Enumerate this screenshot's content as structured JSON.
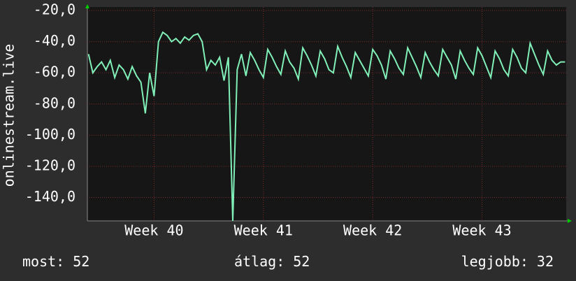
{
  "chart_data": {
    "type": "line",
    "ylabel": "onlinestream.live",
    "x": [
      39.4,
      39.44,
      39.48,
      39.52,
      39.56,
      39.6,
      39.64,
      39.68,
      39.72,
      39.76,
      39.8,
      39.84,
      39.88,
      39.92,
      39.96,
      40,
      40.04,
      40.08,
      40.12,
      40.16,
      40.2,
      40.24,
      40.28,
      40.32,
      40.36,
      40.4,
      40.44,
      40.48,
      40.52,
      40.56,
      40.6,
      40.64,
      40.68,
      40.72,
      40.76,
      40.8,
      40.84,
      40.88,
      40.92,
      40.96,
      41,
      41.04,
      41.08,
      41.12,
      41.16,
      41.2,
      41.24,
      41.28,
      41.32,
      41.36,
      41.4,
      41.44,
      41.48,
      41.52,
      41.56,
      41.6,
      41.64,
      41.68,
      41.72,
      41.76,
      41.8,
      41.84,
      41.88,
      41.92,
      41.96,
      42,
      42.04,
      42.08,
      42.12,
      42.16,
      42.2,
      42.24,
      42.28,
      42.32,
      42.36,
      42.4,
      42.44,
      42.48,
      42.52,
      42.56,
      42.6,
      42.64,
      42.68,
      42.72,
      42.76,
      42.8,
      42.84,
      42.88,
      42.92,
      42.96,
      43,
      43.04,
      43.08,
      43.12,
      43.16,
      43.2,
      43.24,
      43.28,
      43.32,
      43.36,
      43.4,
      43.44,
      43.48,
      43.52,
      43.56,
      43.6,
      43.64,
      43.68,
      43.72,
      43.76
    ],
    "series": [
      {
        "color": "#80f0b8",
        "values": [
          -48,
          -60,
          -56,
          -53,
          -58,
          -52,
          -63,
          -55,
          -58,
          -64,
          -56,
          -62,
          -66,
          -86,
          -60,
          -75,
          -40,
          -34,
          -36,
          -40,
          -38,
          -41,
          -37,
          -39,
          -36,
          -35,
          -40,
          -58,
          -52,
          -55,
          -50,
          -65,
          -50,
          -155,
          -58,
          -48,
          -62,
          -47,
          -52,
          -58,
          -63,
          -45,
          -50,
          -56,
          -61,
          -46,
          -53,
          -57,
          -64,
          -44,
          -49,
          -55,
          -62,
          -46,
          -51,
          -58,
          -60,
          -43,
          -50,
          -56,
          -63,
          -47,
          -52,
          -57,
          -62,
          -45,
          -49,
          -55,
          -64,
          -46,
          -51,
          -57,
          -61,
          -44,
          -50,
          -56,
          -63,
          -47,
          -53,
          -58,
          -62,
          -45,
          -50,
          -55,
          -64,
          -46,
          -52,
          -57,
          -61,
          -44,
          -49,
          -56,
          -63,
          -46,
          -51,
          -58,
          -62,
          -45,
          -50,
          -57,
          -60,
          -41,
          -48,
          -55,
          -61,
          -46,
          -52,
          -55,
          -53,
          -53
        ]
      }
    ],
    "xlim": [
      39.39,
      43.77
    ],
    "xticks": [
      {
        "value": 40,
        "label": "Week 40"
      },
      {
        "value": 41,
        "label": "Week 41"
      },
      {
        "value": 42,
        "label": "Week 42"
      },
      {
        "value": 43,
        "label": "Week 43"
      }
    ],
    "ylim": [
      -155,
      -20
    ],
    "yticks": [
      {
        "value": -20,
        "label": "-20,0"
      },
      {
        "value": -40,
        "label": "-40,0"
      },
      {
        "value": -60,
        "label": "-60,0"
      },
      {
        "value": -80,
        "label": "-80,0"
      },
      {
        "value": -100,
        "label": "-100,0"
      },
      {
        "value": -120,
        "label": "-120,0"
      },
      {
        "value": -140,
        "label": "-140,0"
      }
    ],
    "grid": true,
    "stats": [
      {
        "label": "most:",
        "value": 52
      },
      {
        "label": "átlag:",
        "value": 52
      },
      {
        "label": "legjobb:",
        "value": 32
      }
    ]
  }
}
